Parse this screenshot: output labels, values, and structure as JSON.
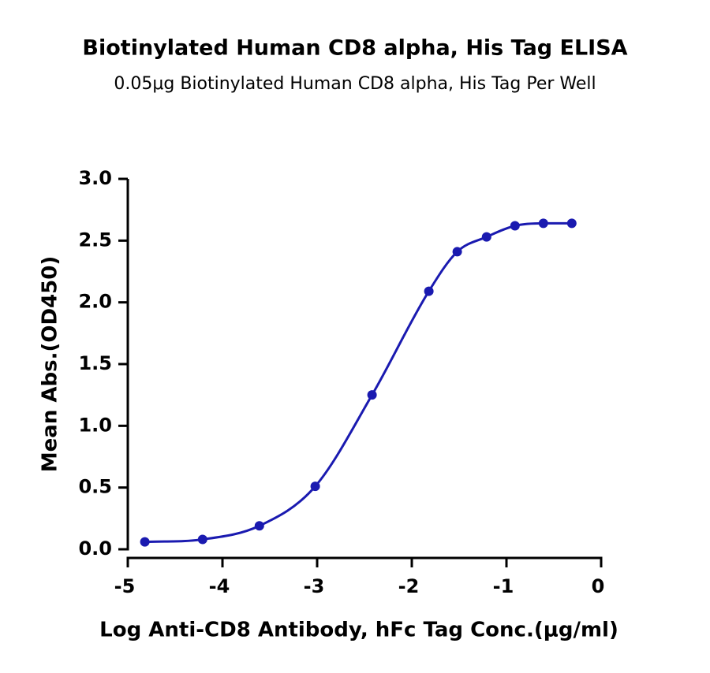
{
  "chart_data": {
    "type": "scatter",
    "title": "Biotinylated Human CD8 alpha, His Tag ELISA",
    "subtitle": "0.05μg Biotinylated Human CD8 alpha, His Tag Per Well",
    "x_label": "Log Anti-CD8 Antibody, hFc Tag Conc.(μg/ml)",
    "y_label": "Mean Abs.(OD450)",
    "x": [
      -4.82,
      -4.21,
      -3.61,
      -3.02,
      -2.42,
      -1.82,
      -1.52,
      -1.21,
      -0.91,
      -0.61,
      -0.31
    ],
    "values": [
      0.06,
      0.08,
      0.19,
      0.51,
      1.25,
      2.09,
      2.41,
      2.53,
      2.62,
      2.64,
      2.64
    ],
    "color": "#1a1ab0",
    "fit_curve": true,
    "xlim": [
      -5,
      0
    ],
    "xticks": [
      -5,
      -4,
      -3,
      -2,
      -1,
      0
    ],
    "ylim": [
      0,
      3
    ],
    "yticks": [
      {
        "value": 0,
        "label": "0.0"
      },
      {
        "value": 0.5,
        "label": "0.5"
      },
      {
        "value": 1,
        "label": "1.0"
      },
      {
        "value": 1.5,
        "label": "1.5"
      },
      {
        "value": 2,
        "label": "2.0"
      },
      {
        "value": 2.5,
        "label": "2.5"
      },
      {
        "value": 3,
        "label": "3.0"
      }
    ]
  }
}
